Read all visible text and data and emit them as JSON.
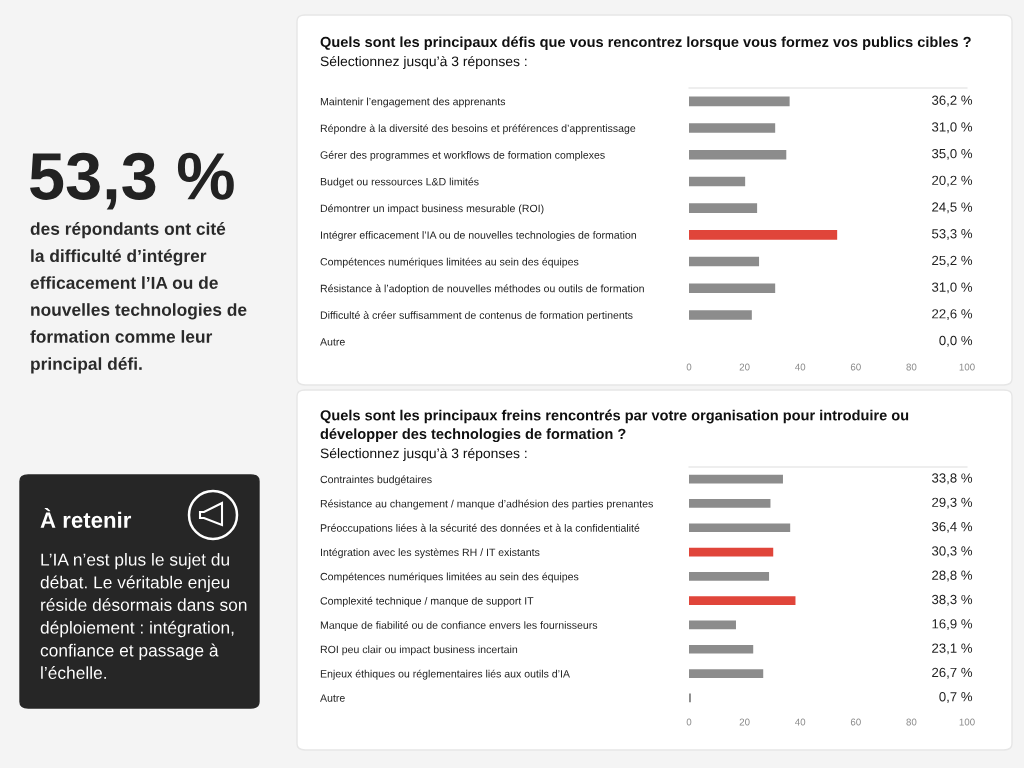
{
  "chart_data": [
    {
      "type": "other",
      "title": "53,3 %",
      "subtitle": "des répondants ont cité\nla difficulté d’intégrer\nefficacement l’IA ou de\nnouvelles technologies de\nformation comme leur\nprincipal défi."
    },
    {
      "type": "other",
      "title": "À retenir",
      "annotations": [
        "L’IA n’est plus le sujet du\ndébat. Le véritable enjeu\nréside désormais dans son\ndéploiement : intégration,\nconfiance et passage à\nl’échelle."
      ]
    },
    {
      "type": "bar",
      "orientation": "horizontal",
      "title": "Quels sont les principaux défis que vous rencontrez lorsque vous formez vos publics cibles ?",
      "subtitle": "Sélectionnez jusqu’à 3 réponses :",
      "categories": [
        "Maintenir l’engagement des apprenants",
        "Répondre à la diversité des besoins et préférences d’apprentissage",
        "Gérer des programmes et workflows de formation complexes",
        "Budget ou ressources L&D limités",
        "Démontrer un impact business mesurable (ROI)",
        "Intégrer efficacement l’IA ou de nouvelles technologies de formation",
        "Compétences numériques limitées au sein des équipes",
        "Résistance à l’adoption de nouvelles méthodes ou outils de formation",
        "Difficulté à créer suffisamment de contenus de formation pertinents",
        "Autre"
      ],
      "values": [
        36.2,
        31.0,
        35.0,
        20.2,
        24.5,
        53.3,
        25.2,
        31.0,
        22.6,
        0.0
      ],
      "value_labels": [
        "36,2 %",
        "31,0 %",
        "35,0 %",
        "20,2 %",
        "24,5 %",
        "53,3 %",
        "25,2 %",
        "31,0 %",
        "22,6 %",
        "0,0 %"
      ],
      "colors": [
        "#8c8c8c",
        "#8c8c8c",
        "#8c8c8c",
        "#8c8c8c",
        "#8c8c8c",
        "#e0453a",
        "#8c8c8c",
        "#8c8c8c",
        "#8c8c8c",
        "#8c8c8c"
      ],
      "xlim": [
        0,
        100
      ],
      "xticks": [
        0,
        20,
        40,
        60,
        80,
        100
      ]
    },
    {
      "type": "bar",
      "orientation": "horizontal",
      "title": "Quels sont les principaux freins rencontrés par votre organisation pour introduire ou\ndévelopper des technologies de formation ?",
      "subtitle": "Sélectionnez jusqu’à 3 réponses :",
      "categories": [
        "Contraintes budgétaires",
        "Résistance au changement / manque d’adhésion des parties prenantes",
        "Préoccupations liées à la sécurité des données et à la confidentialité",
        "Intégration avec les systèmes RH / IT existants",
        "Compétences numériques limitées au sein des équipes",
        "Complexité technique / manque de support IT",
        "Manque de fiabilité ou de confiance envers les fournisseurs",
        "ROI peu clair ou impact business incertain",
        "Enjeux éthiques ou réglementaires liés aux outils d’IA",
        "Autre"
      ],
      "values": [
        33.8,
        29.3,
        36.4,
        30.3,
        28.8,
        38.3,
        16.9,
        23.1,
        26.7,
        0.7
      ],
      "value_labels": [
        "33,8 %",
        "29,3 %",
        "36,4 %",
        "30,3 %",
        "28,8 %",
        "38,3 %",
        "16,9 %",
        "23,1 %",
        "26,7 %",
        "0,7 %"
      ],
      "colors": [
        "#8c8c8c",
        "#8c8c8c",
        "#8c8c8c",
        "#e0453a",
        "#8c8c8c",
        "#e0453a",
        "#8c8c8c",
        "#8c8c8c",
        "#8c8c8c",
        "#8c8c8c"
      ],
      "xlim": [
        0,
        100
      ],
      "xticks": [
        0,
        20,
        40,
        60,
        80,
        100
      ]
    }
  ]
}
